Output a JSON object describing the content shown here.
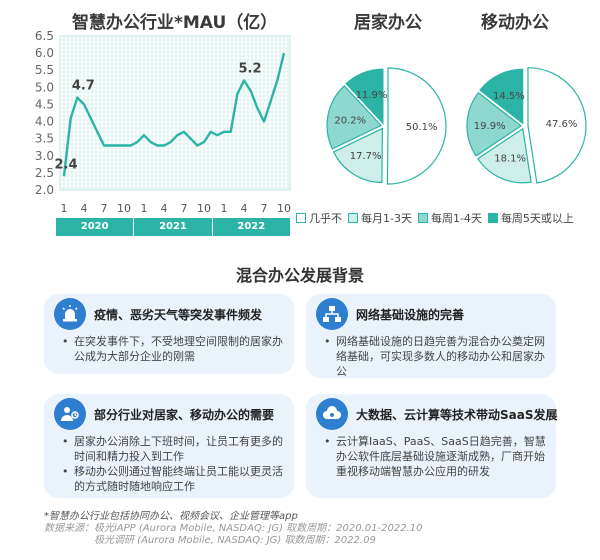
{
  "mau_chart": {
    "title": "智慧办公行业*MAU（亿）",
    "annotations": [
      "2.4",
      "4.7",
      "5.2"
    ],
    "years": [
      "2020",
      "2021",
      "2022"
    ]
  },
  "pies": {
    "home_title": "居家办公",
    "mobile_title": "移动办公",
    "legend": [
      "几乎不",
      "每月1-3天",
      "每周1-4天",
      "每周5天或以上"
    ]
  },
  "section_title": "混合办公发展背景",
  "cards": [
    {
      "title": "疫情、恶劣天气等突发事件频发",
      "bullets": [
        "在突发事件下，不受地理空间限制的居家办公成为大部分企业的刚需"
      ]
    },
    {
      "title": "网络基础设施的完善",
      "bullets": [
        "网络基础设施的日趋完善为混合办公奠定网络基础，可实现多数人的移动办公和居家办公"
      ]
    },
    {
      "title": "部分行业对居家、移动办公的需要",
      "bullets": [
        "居家办公消除上下班时间，让员工有更多的时间和精力投入到工作",
        "移动办公则通过智能终端让员工能以更灵活的方式随时随地响应工作"
      ]
    },
    {
      "title": "大数据、云计算等技术带动SaaS发展",
      "bullets": [
        "云计算IaaS、PaaS、SaaS日趋完善，智慧办公软件底层基础设施逐渐成熟，厂商开始重视移动端智慧办公应用的研发"
      ]
    }
  ],
  "footnote": {
    "note": "*智慧办公行业包括协同办公、视频会议、企业管理等app",
    "source_label": "数据来源：",
    "source_lines": [
      "极光iAPP (Aurora Mobile, NASDAQ: JG) 取数周期：2020.01-2022.10",
      "极光调研 (Aurora Mobile, NASDAQ: JG) 取数周期：2022.09"
    ]
  },
  "colors": {
    "teal": "#2bb4a5",
    "mid_teal": "#8fd8cf",
    "light_teal": "#cdeee9",
    "line": "#2bb4a5",
    "grid": "#bfe8e2",
    "card_bg": "#eaf3fc",
    "icon_blue": "#2f7fd0"
  },
  "chart_data": [
    {
      "type": "line",
      "title": "智慧办公行业*MAU（亿）",
      "xlabel": "",
      "ylabel": "",
      "ylim": [
        2.0,
        6.5
      ],
      "yticks": [
        "6.5",
        "6.0",
        "5.5",
        "5.0",
        "4.5",
        "4.0",
        "3.5",
        "3.0",
        "2.5",
        "2.0"
      ],
      "x_tick_labels": [
        "1",
        "4",
        "7",
        "10",
        "1",
        "4",
        "7",
        "10",
        "1",
        "4",
        "7",
        "10"
      ],
      "x": [
        "2020-01",
        "2020-02",
        "2020-03",
        "2020-04",
        "2020-05",
        "2020-06",
        "2020-07",
        "2020-08",
        "2020-09",
        "2020-10",
        "2020-11",
        "2020-12",
        "2021-01",
        "2021-02",
        "2021-03",
        "2021-04",
        "2021-05",
        "2021-06",
        "2021-07",
        "2021-08",
        "2021-09",
        "2021-10",
        "2021-11",
        "2021-12",
        "2022-01",
        "2022-02",
        "2022-03",
        "2022-04",
        "2022-05",
        "2022-06",
        "2022-07",
        "2022-08",
        "2022-09",
        "2022-10"
      ],
      "series": [
        {
          "values": [
            2.4,
            4.1,
            4.7,
            4.5,
            4.1,
            3.7,
            3.3,
            3.3,
            3.3,
            3.3,
            3.3,
            3.4,
            3.6,
            3.4,
            3.3,
            3.3,
            3.4,
            3.6,
            3.7,
            3.5,
            3.3,
            3.4,
            3.7,
            3.6,
            3.7,
            3.7,
            4.8,
            5.2,
            4.9,
            4.4,
            4.0,
            4.6,
            5.2,
            6.0
          ]
        }
      ],
      "labeled_points": [
        {
          "x": "2020-01",
          "y": 2.4
        },
        {
          "x": "2020-03",
          "y": 4.7
        },
        {
          "x": "2022-04",
          "y": 5.2
        }
      ],
      "grid": true
    },
    {
      "type": "pie",
      "title": "居家办公",
      "categories": [
        "几乎不",
        "每月1-3天",
        "每周1-4天",
        "每周5天或以上"
      ],
      "values": [
        50.1,
        17.7,
        20.2,
        11.9
      ]
    },
    {
      "type": "pie",
      "title": "移动办公",
      "categories": [
        "几乎不",
        "每月1-3天",
        "每周1-4天",
        "每周5天或以上"
      ],
      "values": [
        47.6,
        18.1,
        19.9,
        14.5
      ]
    }
  ]
}
